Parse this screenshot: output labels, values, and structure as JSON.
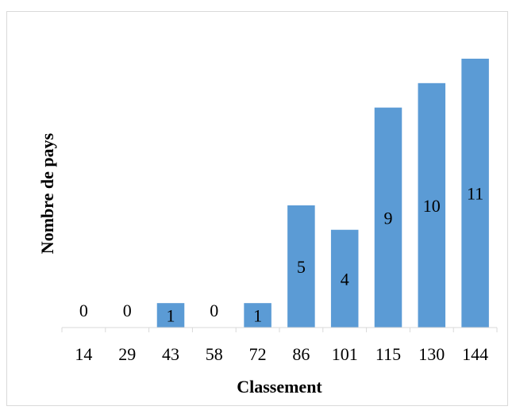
{
  "chart_data": {
    "type": "bar",
    "categories": [
      "14",
      "29",
      "43",
      "58",
      "72",
      "86",
      "101",
      "115",
      "130",
      "144"
    ],
    "values": [
      0,
      0,
      1,
      0,
      1,
      5,
      4,
      9,
      10,
      11
    ],
    "data_labels": [
      "0",
      "0",
      "1",
      "0",
      "1",
      "5",
      "4",
      "9",
      "10",
      "11"
    ],
    "title": "",
    "xlabel": "Classement",
    "ylabel": "Nombre de pays",
    "ylim": [
      0,
      11
    ],
    "grid": false,
    "legend": "none",
    "bar_color": "#5b9bd5"
  }
}
